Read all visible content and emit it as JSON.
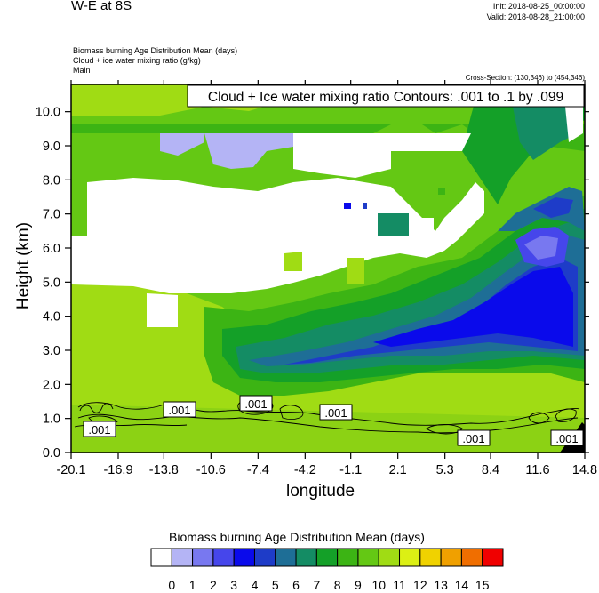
{
  "header": {
    "title": "W-E at 8S",
    "init": "Init: 2018-08-25_00:00:00",
    "valid": "Valid: 2018-08-28_21:00:00",
    "desc_lines": [
      "Biomass burning Age Distribution Mean   (days)",
      "Cloud + ice water mixing ratio   (g/kg)",
      "Main"
    ],
    "cross_section": "Cross-Section: (130,346) to (454,346)"
  },
  "chart_data": {
    "type": "heatmap",
    "xlabel": "longitude",
    "ylabel": "Height (km)",
    "x_ticks": [
      "-20.1",
      "-16.9",
      "-13.8",
      "-10.6",
      "-7.4",
      "-4.2",
      "-1.1",
      "2.1",
      "5.3",
      "8.4",
      "11.6",
      "14.8"
    ],
    "y_ticks": [
      "0.0",
      "1.0",
      "2.0",
      "3.0",
      "4.0",
      "5.0",
      "6.0",
      "7.0",
      "8.0",
      "9.0",
      "10.0"
    ],
    "xlim": [
      -20.1,
      14.8
    ],
    "ylim": [
      0.0,
      10.8
    ],
    "contour_annotation": "Cloud + Ice water mixing ratio Contours: .001 to .1 by .099",
    "contour_labels": [
      ".001",
      ".001",
      ".001",
      ".001",
      ".001",
      ".001"
    ],
    "colorbar": {
      "title": "Biomass burning Age Distribution Mean  (days)",
      "labels": [
        "0",
        "1",
        "2",
        "3",
        "4",
        "5",
        "6",
        "7",
        "8",
        "9",
        "10",
        "11",
        "12",
        "13",
        "14",
        "15"
      ],
      "colors": [
        "#ffffff",
        "#b4b4f5",
        "#7878f0",
        "#4646eb",
        "#0a0aeb",
        "#1e3cc8",
        "#1e6e96",
        "#148c64",
        "#14a028",
        "#3cb414",
        "#64c814",
        "#a0dc14",
        "#dcf014",
        "#f0d200",
        "#f0a000",
        "#f06e00",
        "#f00000"
      ]
    }
  }
}
